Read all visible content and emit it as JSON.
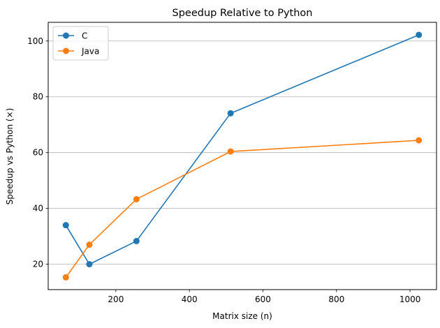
{
  "chart_data": {
    "type": "line",
    "title": "Speedup Relative to Python",
    "xlabel": "Matrix size (n)",
    "ylabel": "Speedup vs Python (×)",
    "x": [
      64,
      128,
      256,
      512,
      1024
    ],
    "series": [
      {
        "name": "C",
        "values": [
          34.0,
          20.0,
          28.3,
          74.1,
          102.2
        ],
        "color": "#1f77b4"
      },
      {
        "name": "Java",
        "values": [
          15.3,
          27.0,
          43.3,
          60.4,
          64.4
        ],
        "color": "#ff7f0e"
      }
    ],
    "xlim": [
      16,
      1072
    ],
    "ylim": [
      10.9,
      106.7
    ],
    "xticks": [
      200,
      400,
      600,
      800,
      1000
    ],
    "yticks": [
      20,
      40,
      60,
      80,
      100
    ],
    "grid": "horizontal",
    "legend_position": "top-left"
  }
}
